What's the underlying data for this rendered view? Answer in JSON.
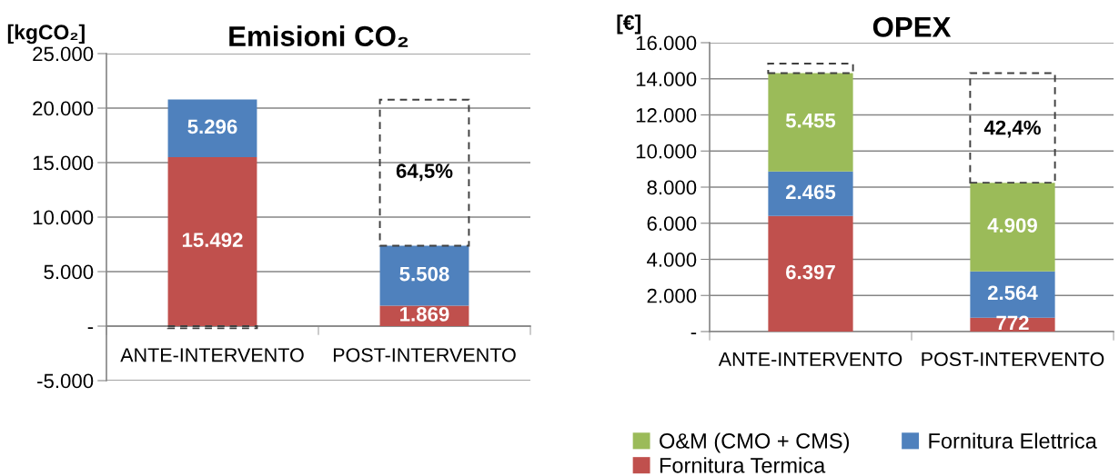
{
  "chart_data": [
    {
      "type": "bar",
      "title": "Emisioni CO₂",
      "ylabel": "[kgCO₂]",
      "categories": [
        "ANTE-INTERVENTO",
        "POST-INTERVENTO"
      ],
      "stacked": true,
      "series": [
        {
          "color": "#c0504d",
          "values": [
            15492,
            1869
          ],
          "value_labels": [
            "15.492",
            "1.869"
          ]
        },
        {
          "color": "#4f81bd",
          "values": [
            5296,
            5508
          ],
          "value_labels": [
            "5.296",
            "5.508"
          ]
        },
        {
          "color": "#404040",
          "line_style": "dashed",
          "values": [
            -200,
            13400
          ]
        }
      ],
      "annotations": [
        "64,5%"
      ],
      "ylim": [
        -5000,
        25000
      ],
      "yticks": [
        {
          "value": -5000,
          "label": "-5.000"
        },
        {
          "value": 0,
          "label": "-"
        },
        {
          "value": 5000,
          "label": "5.000"
        },
        {
          "value": 10000,
          "label": "10.000"
        },
        {
          "value": 15000,
          "label": "15.000"
        },
        {
          "value": 20000,
          "label": "20.000"
        },
        {
          "value": 25000,
          "label": "25.000"
        }
      ],
      "grid": "y"
    },
    {
      "type": "bar",
      "title": "OPEX",
      "ylabel": "[€]",
      "categories": [
        "ANTE-INTERVENTO",
        "POST-INTERVENTO"
      ],
      "stacked": true,
      "series": [
        {
          "name": "Fornitura Termica",
          "color": "#c0504d",
          "values": [
            6397,
            772
          ],
          "value_labels": [
            "6.397",
            "772"
          ]
        },
        {
          "name": "Fornitura Elettrica",
          "color": "#4f81bd",
          "values": [
            2465,
            2564
          ],
          "value_labels": [
            "2.465",
            "2.564"
          ]
        },
        {
          "name": "O&M (CMO + CMS)",
          "color": "#9bbb59",
          "values": [
            5455,
            4909
          ],
          "value_labels": [
            "5.455",
            "4.909"
          ]
        },
        {
          "color": "#404040",
          "line_style": "dashed",
          "values": [
            530,
            6070
          ]
        }
      ],
      "annotations": [
        "42,4%"
      ],
      "ylim": [
        0,
        16000
      ],
      "yticks": [
        {
          "value": 0,
          "label": "-"
        },
        {
          "value": 2000,
          "label": "2.000"
        },
        {
          "value": 4000,
          "label": "4.000"
        },
        {
          "value": 6000,
          "label": "6.000"
        },
        {
          "value": 8000,
          "label": "8.000"
        },
        {
          "value": 10000,
          "label": "10.000"
        },
        {
          "value": 12000,
          "label": "12.000"
        },
        {
          "value": 14000,
          "label": "14.000"
        },
        {
          "value": 16000,
          "label": "16.000"
        }
      ],
      "grid": "y",
      "legend": "bottom"
    }
  ]
}
